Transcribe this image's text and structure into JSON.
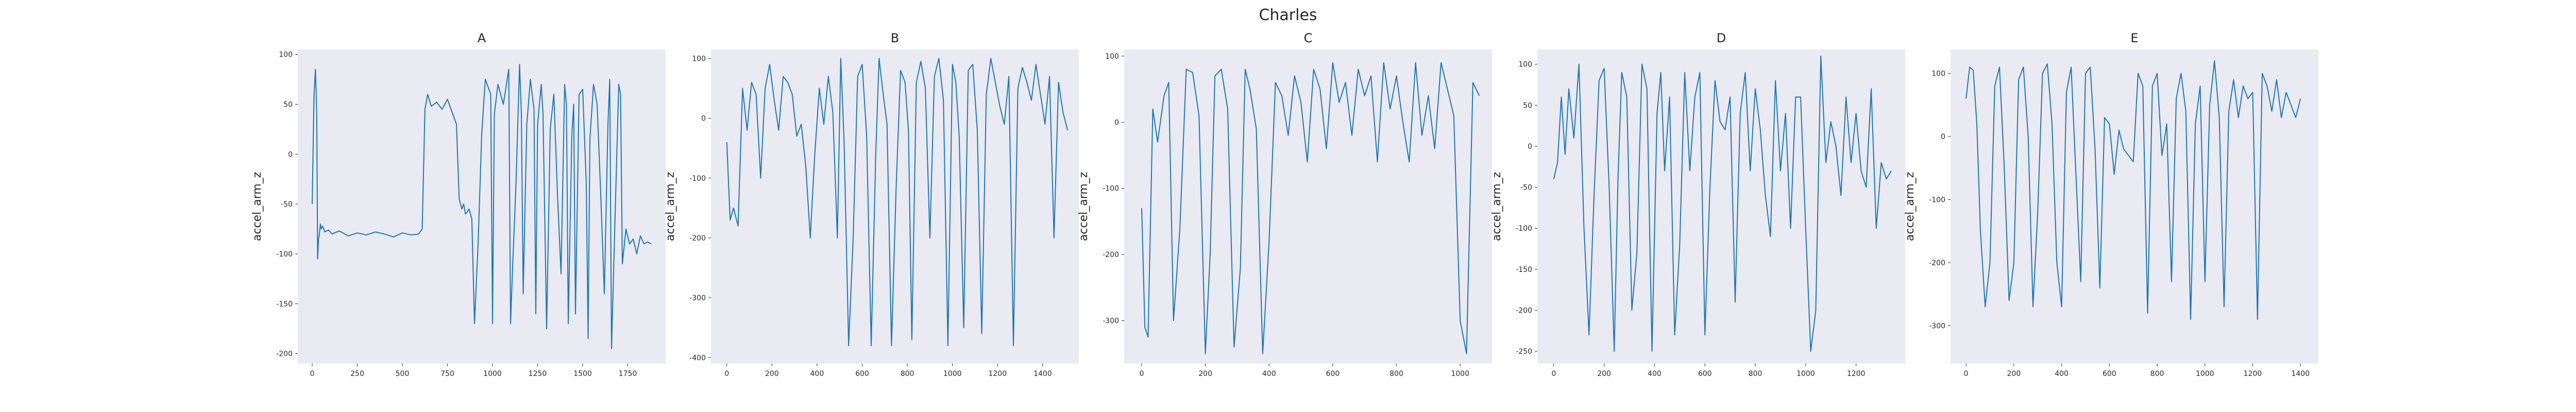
{
  "figure": {
    "title": "Charles"
  },
  "colors": {
    "line": "#1f77b4",
    "plot_bg": "#eaeaf2",
    "text": "#262626"
  },
  "chart_data": [
    {
      "type": "line",
      "title": "A",
      "xlabel": "",
      "ylabel": "accel_arm_z",
      "xlim": [
        -80,
        1960
      ],
      "ylim": [
        -210,
        105
      ],
      "grid": false,
      "xticks": [
        0,
        250,
        500,
        750,
        1000,
        1250,
        1500,
        1750
      ],
      "yticks": [
        -200,
        -150,
        -100,
        -50,
        0,
        50,
        100
      ],
      "series": [
        {
          "values_x": [
            0,
            10,
            18,
            25,
            30,
            35,
            40,
            45,
            50,
            58,
            70,
            90,
            110,
            150,
            200,
            250,
            300,
            350,
            400,
            450,
            500,
            550,
            590,
            610,
            625,
            640,
            660,
            690,
            720,
            750,
            780,
            800,
            815,
            830,
            840,
            850,
            860,
            870,
            885,
            900,
            920,
            940,
            960,
            990,
            1000,
            1010,
            1030,
            1060,
            1090,
            1100,
            1110,
            1130,
            1150,
            1160,
            1170,
            1190,
            1210,
            1230,
            1240,
            1250,
            1270,
            1280,
            1300,
            1320,
            1340,
            1360,
            1380,
            1400,
            1410,
            1420,
            1440,
            1450,
            1460,
            1480,
            1500,
            1520,
            1530,
            1540,
            1560,
            1580,
            1600,
            1620,
            1640,
            1650,
            1660,
            1680,
            1700,
            1710,
            1720,
            1740,
            1760,
            1780,
            1800,
            1820,
            1840,
            1860,
            1880
          ],
          "values": [
            -50,
            60,
            85,
            40,
            -105,
            -85,
            -80,
            -70,
            -75,
            -72,
            -78,
            -76,
            -80,
            -77,
            -82,
            -79,
            -81,
            -78,
            -80,
            -83,
            -79,
            -81,
            -80,
            -75,
            45,
            60,
            48,
            52,
            45,
            55,
            40,
            30,
            -45,
            -55,
            -50,
            -60,
            -58,
            -55,
            -65,
            -170,
            -90,
            20,
            75,
            60,
            -170,
            40,
            70,
            50,
            85,
            -170,
            -120,
            -30,
            90,
            40,
            -140,
            30,
            75,
            45,
            -160,
            30,
            70,
            40,
            -175,
            25,
            60,
            -40,
            -120,
            70,
            50,
            -170,
            20,
            50,
            -160,
            60,
            65,
            -30,
            -185,
            15,
            70,
            50,
            -40,
            -140,
            30,
            75,
            -195,
            -60,
            70,
            60,
            -110,
            -75,
            -90,
            -85,
            -100,
            -82,
            -90,
            -88,
            -90
          ]
        }
      ]
    },
    {
      "type": "line",
      "title": "B",
      "xlabel": "",
      "ylabel": "accel_arm_z",
      "xlim": [
        -70,
        1560
      ],
      "ylim": [
        -410,
        115
      ],
      "grid": false,
      "xticks": [
        0,
        200,
        400,
        600,
        800,
        1000,
        1200,
        1400
      ],
      "yticks": [
        -400,
        -300,
        -200,
        -100,
        0,
        100
      ],
      "series": [
        {
          "values_x": [
            0,
            15,
            30,
            50,
            70,
            90,
            110,
            130,
            150,
            170,
            190,
            210,
            230,
            250,
            270,
            290,
            310,
            330,
            350,
            370,
            390,
            410,
            430,
            450,
            470,
            490,
            505,
            520,
            540,
            560,
            580,
            600,
            620,
            640,
            660,
            675,
            690,
            710,
            730,
            750,
            770,
            790,
            805,
            820,
            840,
            860,
            880,
            900,
            920,
            940,
            960,
            980,
            1000,
            1015,
            1030,
            1050,
            1070,
            1090,
            1110,
            1130,
            1150,
            1170,
            1190,
            1210,
            1230,
            1250,
            1270,
            1290,
            1310,
            1330,
            1350,
            1370,
            1390,
            1410,
            1430,
            1450,
            1470,
            1490,
            1510
          ],
          "values": [
            -40,
            -170,
            -150,
            -180,
            50,
            -20,
            60,
            40,
            -100,
            50,
            90,
            30,
            -20,
            70,
            60,
            40,
            -30,
            -10,
            -80,
            -200,
            -60,
            50,
            -10,
            70,
            10,
            -200,
            100,
            -40,
            -380,
            -200,
            70,
            90,
            -30,
            -380,
            -60,
            100,
            50,
            -10,
            -380,
            -120,
            80,
            60,
            -20,
            -370,
            60,
            95,
            50,
            -200,
            70,
            100,
            30,
            -380,
            90,
            60,
            -30,
            -350,
            80,
            90,
            -20,
            -360,
            40,
            100,
            60,
            20,
            -10,
            70,
            -380,
            50,
            85,
            60,
            30,
            90,
            40,
            -10,
            70,
            -200,
            60,
            10,
            -20
          ]
        }
      ]
    },
    {
      "type": "line",
      "title": "C",
      "xlabel": "",
      "ylabel": "accel_arm_z",
      "xlim": [
        -55,
        1100
      ],
      "ylim": [
        -365,
        110
      ],
      "grid": false,
      "xticks": [
        0,
        200,
        400,
        600,
        800,
        1000
      ],
      "yticks": [
        -300,
        -200,
        -100,
        0,
        100
      ],
      "series": [
        {
          "values_x": [
            0,
            10,
            20,
            35,
            50,
            70,
            85,
            100,
            120,
            140,
            160,
            180,
            200,
            215,
            230,
            250,
            270,
            290,
            310,
            325,
            340,
            360,
            380,
            400,
            420,
            440,
            460,
            480,
            500,
            520,
            540,
            560,
            580,
            600,
            620,
            640,
            660,
            680,
            700,
            720,
            740,
            760,
            780,
            800,
            820,
            840,
            860,
            880,
            900,
            920,
            940,
            960,
            980,
            1000,
            1020,
            1040,
            1060
          ],
          "values": [
            -130,
            -310,
            -325,
            20,
            -30,
            40,
            60,
            -300,
            -160,
            80,
            75,
            10,
            -350,
            -200,
            70,
            80,
            20,
            -340,
            -220,
            80,
            50,
            -10,
            -350,
            -180,
            60,
            40,
            -20,
            70,
            30,
            -60,
            80,
            50,
            -40,
            90,
            30,
            60,
            -20,
            80,
            40,
            70,
            -60,
            90,
            20,
            70,
            0,
            -60,
            90,
            -20,
            40,
            -40,
            90,
            50,
            10,
            -300,
            -350,
            60,
            40
          ]
        }
      ]
    },
    {
      "type": "line",
      "title": "D",
      "xlabel": "",
      "ylabel": "accel_arm_z",
      "xlim": [
        -65,
        1395
      ],
      "ylim": [
        -265,
        118
      ],
      "grid": false,
      "xticks": [
        0,
        200,
        400,
        600,
        800,
        1000,
        1200
      ],
      "yticks": [
        -250,
        -200,
        -150,
        -100,
        -50,
        0,
        50,
        100
      ],
      "series": [
        {
          "values_x": [
            0,
            15,
            30,
            45,
            60,
            80,
            100,
            120,
            140,
            160,
            180,
            200,
            220,
            240,
            255,
            270,
            290,
            310,
            330,
            350,
            370,
            390,
            410,
            425,
            440,
            460,
            480,
            500,
            520,
            540,
            560,
            580,
            600,
            620,
            640,
            660,
            680,
            700,
            720,
            740,
            760,
            780,
            800,
            820,
            840,
            860,
            880,
            900,
            920,
            940,
            960,
            980,
            1000,
            1020,
            1040,
            1060,
            1080,
            1100,
            1120,
            1140,
            1160,
            1180,
            1200,
            1220,
            1240,
            1260,
            1280,
            1300,
            1320,
            1340
          ],
          "values": [
            -40,
            -20,
            60,
            -10,
            70,
            10,
            100,
            -100,
            -230,
            -60,
            80,
            95,
            -50,
            -250,
            -40,
            90,
            60,
            -200,
            -130,
            100,
            70,
            -250,
            40,
            90,
            -30,
            60,
            -230,
            -120,
            90,
            -30,
            60,
            90,
            -230,
            -50,
            80,
            30,
            20,
            60,
            -190,
            40,
            90,
            -30,
            70,
            20,
            -60,
            -110,
            80,
            -30,
            40,
            -100,
            60,
            60,
            -100,
            -250,
            -200,
            110,
            -20,
            30,
            0,
            -60,
            60,
            -20,
            40,
            -30,
            -50,
            70,
            -100,
            -20,
            -40,
            -30
          ]
        }
      ]
    },
    {
      "type": "line",
      "title": "E",
      "xlabel": "",
      "ylabel": "accel_arm_z",
      "xlim": [
        -65,
        1475
      ],
      "ylim": [
        -360,
        138
      ],
      "grid": false,
      "xticks": [
        0,
        200,
        400,
        600,
        800,
        1000,
        1200,
        1400
      ],
      "yticks": [
        -300,
        -200,
        -100,
        0,
        100
      ],
      "series": [
        {
          "values_x": [
            0,
            15,
            30,
            45,
            60,
            80,
            100,
            120,
            140,
            160,
            180,
            200,
            220,
            240,
            260,
            280,
            300,
            320,
            340,
            360,
            380,
            400,
            420,
            440,
            460,
            480,
            500,
            520,
            540,
            560,
            580,
            600,
            620,
            640,
            660,
            680,
            700,
            720,
            740,
            760,
            780,
            800,
            820,
            840,
            860,
            880,
            900,
            920,
            940,
            960,
            980,
            1000,
            1020,
            1040,
            1060,
            1080,
            1100,
            1120,
            1140,
            1160,
            1180,
            1200,
            1220,
            1240,
            1260,
            1280,
            1300,
            1320,
            1340,
            1360,
            1380,
            1400
          ],
          "values": [
            60,
            110,
            105,
            20,
            -150,
            -270,
            -200,
            80,
            110,
            -50,
            -260,
            -200,
            90,
            110,
            0,
            -270,
            -120,
            100,
            115,
            20,
            -200,
            -270,
            70,
            110,
            -60,
            -230,
            100,
            110,
            -20,
            -240,
            30,
            20,
            -60,
            10,
            -20,
            -30,
            -40,
            100,
            80,
            -280,
            80,
            100,
            -30,
            20,
            -230,
            60,
            100,
            40,
            -290,
            20,
            80,
            -230,
            50,
            120,
            30,
            -270,
            40,
            90,
            30,
            80,
            60,
            70,
            -290,
            100,
            80,
            40,
            90,
            30,
            70,
            50,
            30,
            60
          ]
        }
      ]
    }
  ]
}
